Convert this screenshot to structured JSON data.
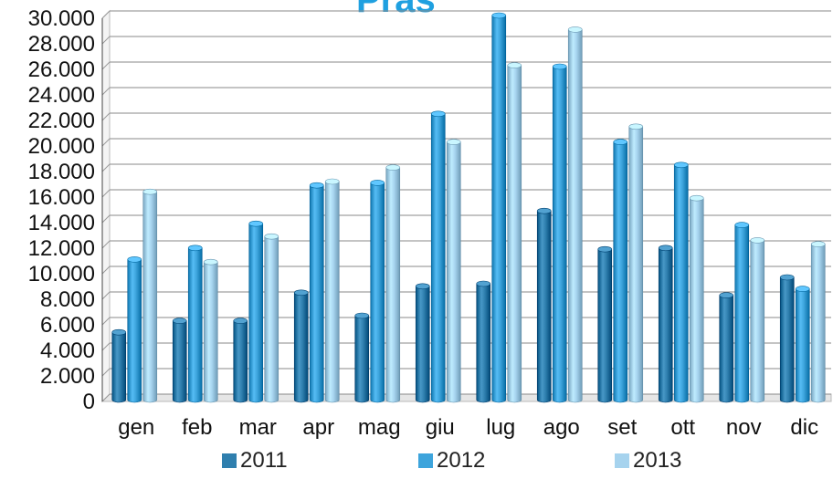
{
  "chart_data": {
    "type": "bar",
    "title": "Pras",
    "categories": [
      "gen",
      "feb",
      "mar",
      "apr",
      "mag",
      "giu",
      "lug",
      "ago",
      "set",
      "ott",
      "nov",
      "dic"
    ],
    "series": [
      {
        "name": "2011",
        "color": "#2f7fae",
        "values": [
          5200,
          6100,
          6100,
          8300,
          6500,
          8800,
          9000,
          14700,
          11700,
          11800,
          8100,
          9500
        ]
      },
      {
        "name": "2012",
        "color": "#3da4dc",
        "values": [
          10900,
          11800,
          13700,
          16700,
          16900,
          22300,
          30000,
          26000,
          20100,
          18300,
          13600,
          8600
        ]
      },
      {
        "name": "2013",
        "color": "#a6d3ee",
        "values": [
          16200,
          10700,
          12700,
          17000,
          18100,
          20100,
          26100,
          28900,
          21300,
          15700,
          12400,
          12100
        ]
      }
    ],
    "ylim": [
      0,
      30000
    ],
    "yticks": [
      0,
      2000,
      4000,
      6000,
      8000,
      10000,
      12000,
      14000,
      16000,
      18000,
      20000,
      22000,
      24000,
      26000,
      28000,
      30000
    ],
    "ytick_labels": [
      "0",
      "2.000",
      "4.000",
      "6.000",
      "8.000",
      "10.000",
      "12.000",
      "14.000",
      "16.000",
      "18.000",
      "20.000",
      "22.000",
      "24.000",
      "26.000",
      "28.000",
      "30.000"
    ],
    "grid": true,
    "legend_position": "bottom"
  }
}
